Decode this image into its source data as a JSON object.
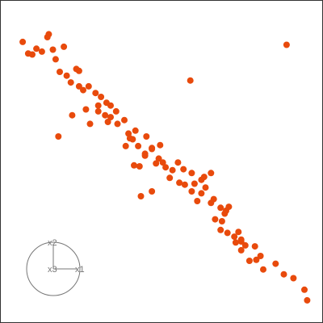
{
  "chart_data": {
    "type": "scatter",
    "point_color": "#e84a0c",
    "frame_color": "#333333",
    "x": [
      -1.42,
      -1.22,
      -1.28,
      -1.06,
      -1.04,
      -1.14,
      -0.98,
      -0.94,
      -0.88,
      -0.78,
      -0.64,
      -0.72,
      -0.54,
      -0.46,
      -0.28,
      -0.14,
      -0.32,
      -0.22,
      -0.06,
      -0.18,
      -0.04,
      0.06,
      0.22,
      0.38,
      0.12,
      0.18,
      0.26,
      0.46,
      0.36,
      0.56,
      0.62,
      0.28,
      0.08,
      0.46,
      0.66,
      0.76,
      0.72,
      0.92,
      1.04,
      0.86,
      1.08,
      1.18,
      1.24,
      1.04,
      1.18,
      1.12,
      1.36,
      1.32,
      1.46,
      1.54,
      1.38,
      1.48,
      1.52,
      1.58,
      1.46,
      1.56,
      1.72,
      1.66,
      1.76,
      1.82,
      1.76,
      1.96,
      1.68,
      1.76,
      2.04,
      1.98,
      2.26,
      2.08,
      2.38,
      2.68,
      2.72,
      1.88,
      -0.82,
      -0.6,
      -0.5,
      -0.36,
      -0.2,
      -0.32,
      0.2,
      0.36,
      0.58,
      0.84,
      0.94,
      1.22,
      1.32,
      0.3,
      0.46,
      -0.6,
      0.14,
      -0.7,
      1.02,
      -1.34,
      -0.9,
      0.52,
      -0.44,
      -0.14,
      2.52
    ],
    "y": [
      1.98,
      1.84,
      1.72,
      2.08,
      2.14,
      1.78,
      1.82,
      1.62,
      1.36,
      1.28,
      1.42,
      1.14,
      0.98,
      1.06,
      0.84,
      0.66,
      0.54,
      0.46,
      0.54,
      0.32,
      0.28,
      0.36,
      0.14,
      0.02,
      0.08,
      -0.04,
      -0.18,
      -0.22,
      -0.34,
      -0.44,
      -0.52,
      -0.6,
      -0.18,
      -0.24,
      -0.62,
      -0.68,
      -0.84,
      -0.66,
      -0.74,
      -0.94,
      -0.96,
      -0.88,
      -1.04,
      -1.12,
      -1.16,
      -1.32,
      -1.28,
      -1.36,
      -1.46,
      -1.52,
      -1.7,
      -1.74,
      -1.58,
      -1.44,
      -1.92,
      -1.98,
      -1.96,
      -2.06,
      -2.16,
      -2.24,
      -2.34,
      -2.26,
      -2.18,
      -2.12,
      -2.46,
      -2.54,
      -2.62,
      -2.74,
      -2.84,
      -3.16,
      -3.38,
      -2.56,
      1.88,
      1.06,
      0.58,
      0.92,
      0.72,
      0.66,
      -0.58,
      -0.38,
      -0.16,
      -0.52,
      -0.98,
      -0.82,
      -0.74,
      -1.22,
      -1.12,
      1.38,
      -0.02,
      0.46,
      1.18,
      1.74,
      0.02,
      -0.54,
      0.28,
      0.42,
      -2.92
    ],
    "outlier": {
      "x": 2.42,
      "y": 1.92
    },
    "xlim": [
      -1.75,
      2.95
    ],
    "ylim": [
      -3.85,
      2.85
    ],
    "grid": false,
    "legend": "none"
  },
  "axes_glyph": {
    "labels": {
      "x1": "x1",
      "x2": "x2",
      "x3": "x3"
    },
    "color": "#777777"
  }
}
